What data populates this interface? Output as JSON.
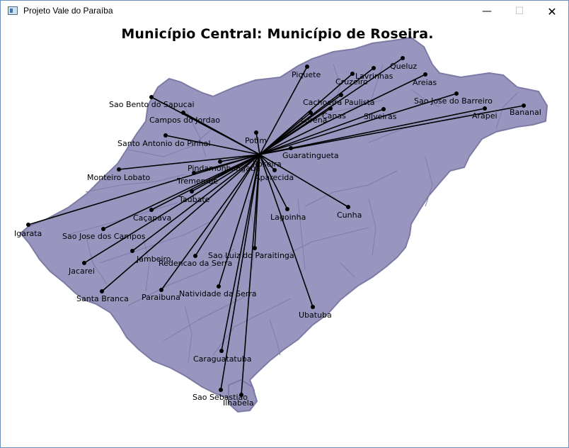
{
  "window": {
    "title": "Projeto Vale do Paraíba",
    "app_icon": "window-app-icon",
    "controls": {
      "minimize": "—",
      "maximize": "☐",
      "close": "✕"
    }
  },
  "map": {
    "heading": "Município Central: Município de Roseira.",
    "central_municipality": "Roseira",
    "region_fill": "#9896bf",
    "border_color": "#7d7ba6",
    "line_color": "#000000",
    "cities": [
      "Igarata",
      "Sao Jose dos Campos",
      "Jacarei",
      "Santa Branca",
      "Caçapava",
      "Jambeiro",
      "Paraibuna",
      "Redencao da Serra",
      "Natividade da Serra",
      "Sao Luiz do Paraitinga",
      "Taubate",
      "Tremembe",
      "Monteiro Lobato",
      "Pindamonhangaba",
      "Santo Antonio do Pinhal",
      "Campos do Jordao",
      "Sao Bento do Sapucai",
      "Potim",
      "Aparecida",
      "Lagoinha",
      "Cunha",
      "Ubatuba",
      "Caraguatatuba",
      "Sao Sebastiao",
      "Ilhabela",
      "Guaratingueta",
      "Lorena",
      "Canas",
      "Cachoeira Paulista",
      "Piquete",
      "Cruzeiro",
      "Lavrinhas",
      "Queluz",
      "Areias",
      "Silveiras",
      "Sao Jose do Barreiro",
      "Arapei",
      "Bananal",
      "Roseira"
    ]
  }
}
